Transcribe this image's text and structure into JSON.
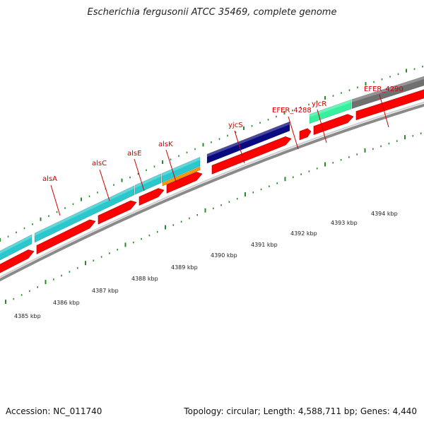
{
  "title": "Escherichia fergusonii ATCC 35469, complete genome",
  "footer": {
    "accession": "Accession: NC_011740",
    "stats": "Topology: circular; Length: 4,588,711 bp; Genes: 4,440"
  },
  "colors": {
    "cds": "#ff0000",
    "gene_cyan": "#2ac8cc",
    "gene_navy": "#0a0a80",
    "gene_green": "#36f0a0",
    "gene_gray": "#707070",
    "gene_orange": "#ff9900",
    "tick": "#2a8a2a",
    "backbone": "#8a8a8a",
    "label": "#cc0000"
  },
  "gene_labels": [
    "alsA",
    "alsC",
    "alsE",
    "alsK",
    "yjcS",
    "EFER_4288",
    "yjcR",
    "EFER_4290"
  ],
  "kbp_labels": [
    "4385 kbp",
    "4386 kbp",
    "4387 kbp",
    "4388 kbp",
    "4389 kbp",
    "4390 kbp",
    "4391 kbp",
    "4392 kbp",
    "4393 kbp",
    "4394 kbp"
  ]
}
